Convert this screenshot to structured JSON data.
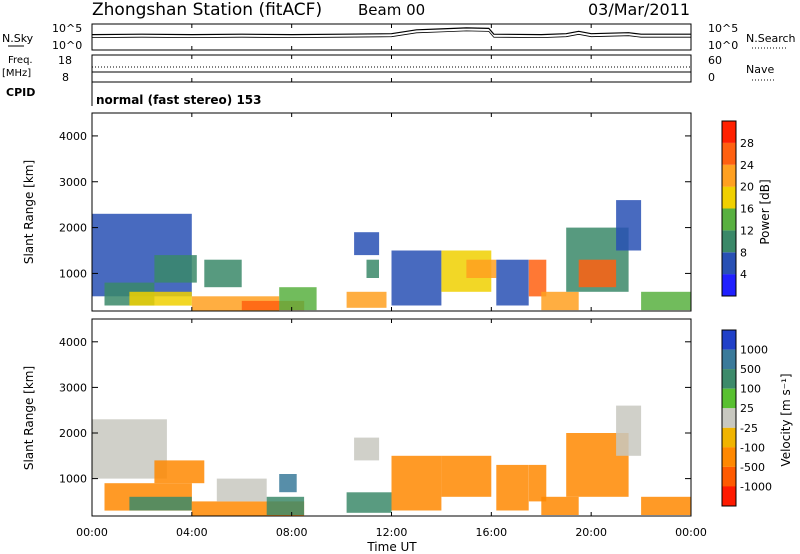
{
  "header": {
    "station": "Zhongshan Station (fitACF)",
    "beam": "Beam 00",
    "date": "03/Mar/2011"
  },
  "status_panel": {
    "nsky_label": "N.Sky",
    "nsky_ticks": [
      "10^5",
      "10^0"
    ],
    "nsearch_label": "N.Search",
    "nsearch_ticks": [
      "10^5",
      "10^0"
    ],
    "freq_label": "Freq.",
    "freq_unit": "[MHz]",
    "freq_ticks": [
      "18",
      "8"
    ],
    "nave_label": "Nave",
    "nave_ticks": [
      "60",
      "0"
    ],
    "cpid_label": "CPID",
    "mode_text": "normal (fast stereo) 153"
  },
  "axes": {
    "ylabel": "Slant Range [km]",
    "xlabel": "Time UT",
    "y_ticks": [
      "1000",
      "2000",
      "3000",
      "4000"
    ],
    "x_ticks": [
      "00:00",
      "04:00",
      "08:00",
      "12:00",
      "16:00",
      "20:00",
      "00:00"
    ]
  },
  "power_colorbar": {
    "label": "Power [dB]",
    "ticks": [
      "4",
      "8",
      "12",
      "16",
      "20",
      "24",
      "28"
    ],
    "colors": [
      "#2020ff",
      "#2850b4",
      "#3a8868",
      "#58b040",
      "#f0d000",
      "#ffa020",
      "#ff6010",
      "#ff2000"
    ]
  },
  "velocity_colorbar": {
    "label": "Velocity [m s⁻¹]",
    "ticks": [
      "1000",
      "500",
      "100",
      "25",
      "-25",
      "-100",
      "-500",
      "-1000"
    ],
    "colors": [
      "#2040c8",
      "#3a7a9a",
      "#3c8a6a",
      "#58c030",
      "#c8c8c0",
      "#f0b400",
      "#ff8800",
      "#ff5a00",
      "#ff1a00"
    ]
  },
  "chart_data": [
    {
      "type": "line",
      "name": "N.Sky / N.Search",
      "x_hours": [
        0,
        2,
        4,
        6,
        8,
        10,
        12,
        13,
        14,
        15,
        15.9,
        16.1,
        18,
        19,
        19.5,
        20,
        21.5,
        22,
        24
      ],
      "y_log": [
        3.2,
        3.3,
        3.2,
        3.3,
        3.2,
        3.3,
        3.4,
        4.2,
        4.4,
        4.6,
        4.5,
        3.3,
        3.2,
        3.4,
        3.9,
        3.4,
        3.6,
        3.3,
        3.3
      ],
      "ylim_log": [
        0,
        5
      ]
    },
    {
      "type": "heatmap",
      "name": "power",
      "x_unit": "hours UT",
      "y_unit": "km",
      "xlim": [
        0,
        24
      ],
      "ylim": [
        180,
        4500
      ],
      "patches": [
        {
          "t0": 0.0,
          "t1": 4.0,
          "r0": 500,
          "r1": 2300,
          "v": 6
        },
        {
          "t0": 0.5,
          "t1": 2.5,
          "r0": 300,
          "r1": 800,
          "v": 10
        },
        {
          "t0": 1.5,
          "t1": 4.0,
          "r0": 300,
          "r1": 600,
          "v": 18
        },
        {
          "t0": 2.5,
          "t1": 4.2,
          "r0": 800,
          "r1": 1400,
          "v": 8
        },
        {
          "t0": 4.0,
          "t1": 7.5,
          "r0": 180,
          "r1": 500,
          "v": 22
        },
        {
          "t0": 4.5,
          "t1": 6.0,
          "r0": 700,
          "r1": 1300,
          "v": 8
        },
        {
          "t0": 6.0,
          "t1": 8.5,
          "r0": 200,
          "r1": 400,
          "v": 27
        },
        {
          "t0": 7.5,
          "t1": 9.0,
          "r0": 200,
          "r1": 700,
          "v": 14
        },
        {
          "t0": 10.2,
          "t1": 11.8,
          "r0": 250,
          "r1": 600,
          "v": 22
        },
        {
          "t0": 10.5,
          "t1": 11.5,
          "r0": 1400,
          "r1": 1900,
          "v": 7
        },
        {
          "t0": 11.0,
          "t1": 11.5,
          "r0": 900,
          "r1": 1300,
          "v": 8
        },
        {
          "t0": 12.0,
          "t1": 14.0,
          "r0": 300,
          "r1": 1500,
          "v": 6
        },
        {
          "t0": 14.0,
          "t1": 16.0,
          "r0": 600,
          "r1": 1500,
          "v": 18
        },
        {
          "t0": 15.0,
          "t1": 16.2,
          "r0": 900,
          "r1": 1300,
          "v": 22
        },
        {
          "t0": 16.2,
          "t1": 17.5,
          "r0": 300,
          "r1": 1300,
          "v": 7
        },
        {
          "t0": 17.5,
          "t1": 18.2,
          "r0": 500,
          "r1": 1300,
          "v": 27
        },
        {
          "t0": 18.0,
          "t1": 19.5,
          "r0": 200,
          "r1": 600,
          "v": 20
        },
        {
          "t0": 19.0,
          "t1": 21.5,
          "r0": 600,
          "r1": 2000,
          "v": 10
        },
        {
          "t0": 19.5,
          "t1": 21.0,
          "r0": 700,
          "r1": 1300,
          "v": 25
        },
        {
          "t0": 21.0,
          "t1": 22.0,
          "r0": 1500,
          "r1": 2600,
          "v": 6
        },
        {
          "t0": 22.0,
          "t1": 24.0,
          "r0": 200,
          "r1": 600,
          "v": 12
        }
      ]
    },
    {
      "type": "heatmap",
      "name": "velocity",
      "x_unit": "hours UT",
      "y_unit": "km",
      "xlim": [
        0,
        24
      ],
      "ylim": [
        180,
        4500
      ],
      "patches": [
        {
          "t0": 0.0,
          "t1": 3.0,
          "r0": 1000,
          "r1": 2300,
          "v": 0
        },
        {
          "t0": 0.5,
          "t1": 4.0,
          "r0": 300,
          "r1": 900,
          "v": -200
        },
        {
          "t0": 1.5,
          "t1": 4.0,
          "r0": 300,
          "r1": 600,
          "v": 150
        },
        {
          "t0": 2.5,
          "t1": 4.5,
          "r0": 900,
          "r1": 1400,
          "v": -300
        },
        {
          "t0": 4.0,
          "t1": 8.5,
          "r0": 180,
          "r1": 500,
          "v": -400
        },
        {
          "t0": 5.0,
          "t1": 7.0,
          "r0": 500,
          "r1": 1000,
          "v": 10
        },
        {
          "t0": 7.0,
          "t1": 8.5,
          "r0": 200,
          "r1": 600,
          "v": 150
        },
        {
          "t0": 7.5,
          "t1": 8.2,
          "r0": 700,
          "r1": 1100,
          "v": 700
        },
        {
          "t0": 10.2,
          "t1": 12.0,
          "r0": 250,
          "r1": 700,
          "v": 150
        },
        {
          "t0": 10.5,
          "t1": 11.5,
          "r0": 1400,
          "r1": 1900,
          "v": 10
        },
        {
          "t0": 12.0,
          "t1": 14.0,
          "r0": 300,
          "r1": 1500,
          "v": -150
        },
        {
          "t0": 14.0,
          "t1": 16.0,
          "r0": 600,
          "r1": 1500,
          "v": -500
        },
        {
          "t0": 16.2,
          "t1": 17.5,
          "r0": 300,
          "r1": 1300,
          "v": -200
        },
        {
          "t0": 17.5,
          "t1": 18.2,
          "r0": 500,
          "r1": 1300,
          "v": -300
        },
        {
          "t0": 18.0,
          "t1": 19.5,
          "r0": 200,
          "r1": 600,
          "v": -400
        },
        {
          "t0": 19.0,
          "t1": 21.5,
          "r0": 600,
          "r1": 2000,
          "v": -300
        },
        {
          "t0": 21.0,
          "t1": 22.0,
          "r0": 1500,
          "r1": 2600,
          "v": 0
        },
        {
          "t0": 22.0,
          "t1": 24.0,
          "r0": 200,
          "r1": 600,
          "v": -150
        }
      ]
    }
  ]
}
